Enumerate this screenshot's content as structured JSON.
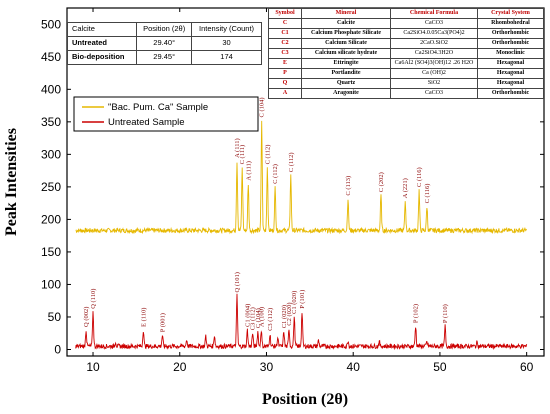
{
  "chart_data": {
    "type": "line",
    "xlabel": "Position (2θ)",
    "ylabel": "Peak Intensities",
    "xlim": [
      7,
      62
    ],
    "ylim": [
      -10,
      525
    ],
    "xticks": [
      10,
      20,
      30,
      40,
      50,
      60
    ],
    "yticks": [
      0,
      50,
      100,
      150,
      200,
      250,
      300,
      350,
      400,
      450,
      500
    ],
    "legend_position": "upper-left",
    "colors": {
      "bio": "#e6b800",
      "untreated": "#cc0000",
      "label": "#8b0000"
    },
    "series": [
      {
        "name": "\"Bac. Pum. Ca\" Sample",
        "color": "#e6b800",
        "baseline": 183,
        "x_range": [
          8,
          60
        ],
        "peaks": [
          {
            "x": 26.6,
            "y": 290,
            "label": "A (111)"
          },
          {
            "x": 27.2,
            "y": 280,
            "label": "C (111)"
          },
          {
            "x": 27.9,
            "y": 255,
            "label": "A (111)"
          },
          {
            "x": 29.45,
            "y": 352,
            "label": "C (104)"
          },
          {
            "x": 30.1,
            "y": 280,
            "label": "C (112)"
          },
          {
            "x": 31.0,
            "y": 250,
            "label": "C (112)"
          },
          {
            "x": 32.8,
            "y": 268,
            "label": "C (112)"
          },
          {
            "x": 39.4,
            "y": 232,
            "label": "C (113)"
          },
          {
            "x": 43.2,
            "y": 237,
            "label": "C (202)"
          },
          {
            "x": 46.0,
            "y": 228,
            "label": "A (221)"
          },
          {
            "x": 47.6,
            "y": 245,
            "label": "C (116)"
          },
          {
            "x": 48.5,
            "y": 220,
            "label": "C (116)"
          }
        ]
      },
      {
        "name": "Untreated Sample",
        "color": "#cc0000",
        "baseline": 5,
        "x_range": [
          8,
          60
        ],
        "peaks": [
          {
            "x": 9.2,
            "y": 30,
            "label": "Q (002)"
          },
          {
            "x": 10.0,
            "y": 58,
            "label": "Q (110)"
          },
          {
            "x": 15.8,
            "y": 30,
            "label": "E (110)"
          },
          {
            "x": 18.0,
            "y": 22,
            "label": "P (001)"
          },
          {
            "x": 26.6,
            "y": 83,
            "label": "Q (101)"
          },
          {
            "x": 27.8,
            "y": 30,
            "label": "C1 (004)"
          },
          {
            "x": 28.4,
            "y": 25,
            "label": "C3 (112)"
          },
          {
            "x": 29.0,
            "y": 28,
            "label": "C (104)"
          },
          {
            "x": 29.4,
            "y": 30,
            "label": "A (100)"
          },
          {
            "x": 30.4,
            "y": 24,
            "label": "C3 (112)"
          },
          {
            "x": 32.0,
            "y": 28,
            "label": "C1 (020)"
          },
          {
            "x": 32.6,
            "y": 32,
            "label": "C2 (020)"
          },
          {
            "x": 33.2,
            "y": 50,
            "label": "C1 (020)"
          },
          {
            "x": 34.1,
            "y": 58,
            "label": "P (101)"
          },
          {
            "x": 47.2,
            "y": 36,
            "label": "P (102)"
          },
          {
            "x": 50.6,
            "y": 36,
            "label": "P (110)"
          }
        ],
        "minor_peaks": [
          {
            "x": 12.6,
            "y": 12
          },
          {
            "x": 20.8,
            "y": 15
          },
          {
            "x": 23.0,
            "y": 20
          },
          {
            "x": 24.0,
            "y": 22
          },
          {
            "x": 31.3,
            "y": 18
          },
          {
            "x": 36.0,
            "y": 14
          },
          {
            "x": 39.4,
            "y": 14
          },
          {
            "x": 43.0,
            "y": 12
          },
          {
            "x": 48.5,
            "y": 12
          },
          {
            "x": 54.3,
            "y": 12
          }
        ]
      }
    ]
  },
  "calcite_table": {
    "header": [
      "Calcite",
      "Position (2θ)",
      "Intensity (Count)"
    ],
    "rows": [
      [
        "Untreated",
        "29.40°",
        "30"
      ],
      [
        "Bio-deposition",
        "29.45°",
        "174"
      ]
    ]
  },
  "mineral_table": {
    "header": [
      "Symbol",
      "Mineral",
      "Chemical Formula",
      "Crystal System"
    ],
    "rows": [
      [
        "C",
        "Calcite",
        "CaCO3",
        "Rhombohedral"
      ],
      [
        "C1",
        "Calcium Phosphate Silicate",
        "Ca2SiO4.0.05Ca3(PO4)2",
        "Orthorhombic"
      ],
      [
        "C2",
        "Calcium Silicate",
        "2CaO.SiO2",
        "Orthorhombic"
      ],
      [
        "C3",
        "Calcium silicate hydrate",
        "Ca2SiO4.3H2O",
        "Monoclinic"
      ],
      [
        "E",
        "Ettringite",
        "Ca6Al2 (SO4)3(OH)12 .26 H2O",
        "Hexagonal"
      ],
      [
        "P",
        "Portlandite",
        "Ca (OH)2",
        "Hexagonal"
      ],
      [
        "Q",
        "Quartz",
        "SiO2",
        "Hexagonal"
      ],
      [
        "A",
        "Aragonite",
        "CaCO3",
        "Orthorhombic"
      ]
    ]
  }
}
